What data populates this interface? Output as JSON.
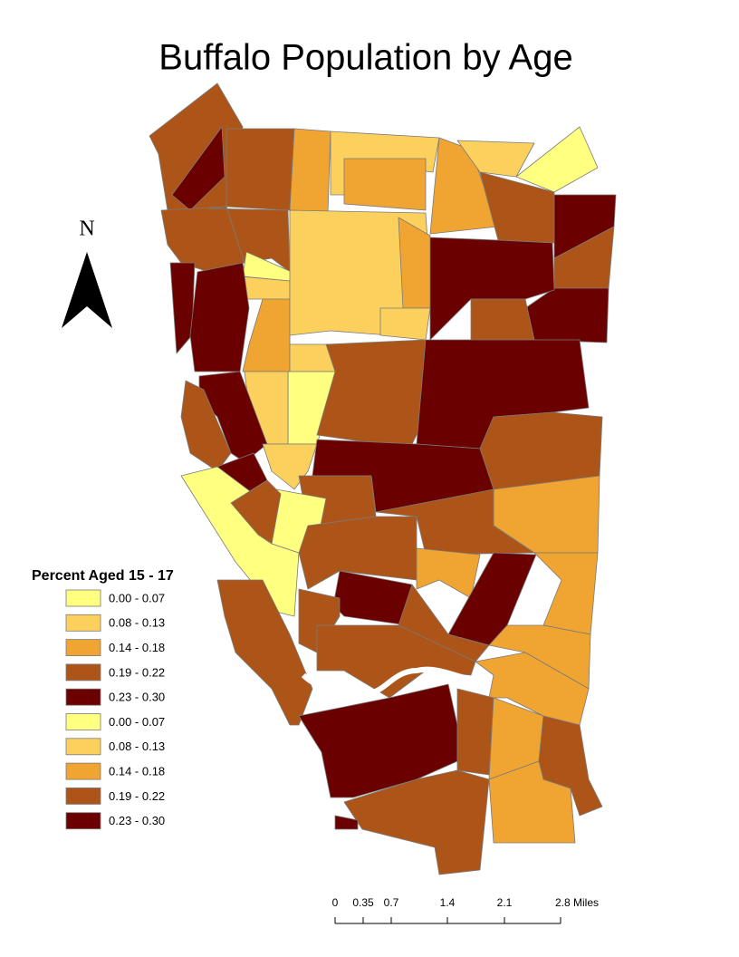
{
  "title": "Buffalo Population by Age",
  "north_arrow": {
    "label": "N"
  },
  "legend": {
    "title": "Percent Aged 15 - 17",
    "items": [
      {
        "label": "0.00 - 0.07",
        "color": "#ffff80"
      },
      {
        "label": "0.08 - 0.13",
        "color": "#fcd05c"
      },
      {
        "label": "0.14 - 0.18",
        "color": "#f0a431"
      },
      {
        "label": "0.19 - 0.22",
        "color": "#ad5519"
      },
      {
        "label": "0.23 - 0.30",
        "color": "#6b0000"
      },
      {
        "label": "0.00 - 0.07",
        "color": "#ffff80"
      },
      {
        "label": "0.08 - 0.13",
        "color": "#fcd05c"
      },
      {
        "label": "0.14 - 0.18",
        "color": "#f0a431"
      },
      {
        "label": "0.19 - 0.22",
        "color": "#ad5519"
      },
      {
        "label": "0.23 - 0.30",
        "color": "#6b0000"
      }
    ]
  },
  "scale_bar": {
    "labels": [
      "0",
      "0.35",
      "0.7",
      "1.4",
      "2.1",
      "2.8 Miles"
    ]
  }
}
